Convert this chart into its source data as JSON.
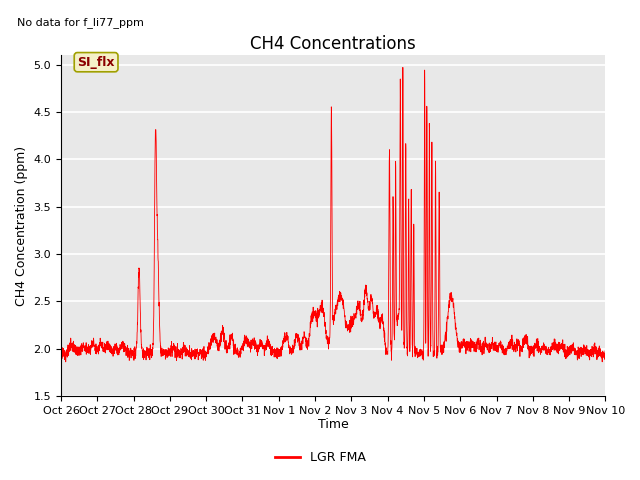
{
  "title": "CH4 Concentrations",
  "ylabel": "CH4 Concentration (ppm)",
  "xlabel": "Time",
  "top_left_text": "No data for f_li77_ppm",
  "legend_label": "LGR FMA",
  "si_flx_label": "SI_flx",
  "ylim": [
    1.5,
    5.1
  ],
  "yticks": [
    1.5,
    2.0,
    2.5,
    3.0,
    3.5,
    4.0,
    4.5,
    5.0
  ],
  "line_color": "#FF0000",
  "background_color": "#FFFFFF",
  "plot_bg_color": "#E8E8E8",
  "title_fontsize": 12,
  "axis_fontsize": 9,
  "tick_fontsize": 8,
  "grid_color": "#FFFFFF",
  "xtick_labels": [
    "Oct 26",
    "Oct 27",
    "Oct 28",
    "Oct 29",
    "Oct 30",
    "Oct 31",
    "Nov 1",
    "Nov 2",
    "Nov 3",
    "Nov 4",
    "Nov 5",
    "Nov 6",
    "Nov 7",
    "Nov 8",
    "Nov 9",
    "Nov 10"
  ]
}
